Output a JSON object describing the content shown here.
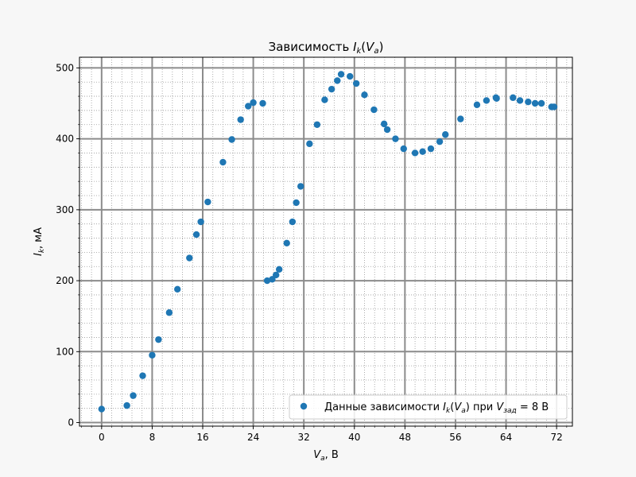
{
  "chart_data": {
    "type": "scatter",
    "title": "Зависимость I_k(V_a)",
    "title_parts": {
      "prefix": "Зависимость ",
      "main": "I",
      "sub1": "k",
      "open": "(",
      "arg": "V",
      "sub2": "a",
      "close": ")"
    },
    "xlabel": "V_a, В",
    "xlabel_parts": {
      "main": "V",
      "sub": "a",
      "rest": ", В"
    },
    "ylabel": "I_k, мА",
    "ylabel_parts": {
      "main": "I",
      "sub": "k",
      "rest": ", мА"
    },
    "xlim": [
      -3.5,
      74.5
    ],
    "ylim": [
      -5,
      515
    ],
    "xticks": [
      0,
      8,
      16,
      24,
      32,
      40,
      48,
      56,
      64,
      72
    ],
    "yticks": [
      0,
      100,
      200,
      300,
      400,
      500
    ],
    "minor_x_step": 1.6,
    "minor_y_step": 20,
    "grid": true,
    "legend_placement": "lower-right",
    "series": [
      {
        "name": "Данные зависимости I_k(V_a) при V_зад = 8 В",
        "legend_parts": {
          "prefix": "Данные зависимости ",
          "main": "I",
          "sub1": "k",
          "open": "(",
          "arg": "V",
          "sub2": "a",
          "close": ")",
          "mid": " при ",
          "v": "V",
          "vsub": "зад",
          "suffix": " = 8 В"
        },
        "color": "#1f77b4",
        "points": [
          [
            0,
            19
          ],
          [
            4,
            24
          ],
          [
            5,
            38
          ],
          [
            6.5,
            66
          ],
          [
            8,
            95
          ],
          [
            9,
            117
          ],
          [
            10.7,
            155
          ],
          [
            12,
            188
          ],
          [
            13.9,
            232
          ],
          [
            15,
            265
          ],
          [
            15.7,
            283
          ],
          [
            16.8,
            311
          ],
          [
            19.2,
            367
          ],
          [
            20.6,
            399
          ],
          [
            22,
            427
          ],
          [
            23.2,
            446
          ],
          [
            24,
            451
          ],
          [
            25.5,
            450
          ],
          [
            26.2,
            200
          ],
          [
            27,
            202
          ],
          [
            27.6,
            208
          ],
          [
            28.1,
            216
          ],
          [
            29.3,
            253
          ],
          [
            30.2,
            283
          ],
          [
            30.8,
            310
          ],
          [
            31.5,
            333
          ],
          [
            32.9,
            393
          ],
          [
            34.1,
            420
          ],
          [
            35.3,
            455
          ],
          [
            36.4,
            470
          ],
          [
            37.3,
            482
          ],
          [
            37.9,
            491
          ],
          [
            39.3,
            488
          ],
          [
            40.3,
            478
          ],
          [
            41.6,
            462
          ],
          [
            43.1,
            441
          ],
          [
            44.7,
            421
          ],
          [
            45.2,
            413
          ],
          [
            46.5,
            400
          ],
          [
            47.8,
            386
          ],
          [
            49.6,
            380
          ],
          [
            50.8,
            382
          ],
          [
            52.1,
            386
          ],
          [
            53.5,
            396
          ],
          [
            54.4,
            406
          ],
          [
            56.8,
            428
          ],
          [
            59.4,
            448
          ],
          [
            60.9,
            454
          ],
          [
            62.4,
            458
          ],
          [
            62.5,
            457
          ],
          [
            65.1,
            458
          ],
          [
            66.2,
            454
          ],
          [
            67.5,
            452
          ],
          [
            68.6,
            450
          ],
          [
            69.6,
            450
          ],
          [
            71.2,
            445
          ],
          [
            71.6,
            445
          ]
        ]
      }
    ]
  }
}
